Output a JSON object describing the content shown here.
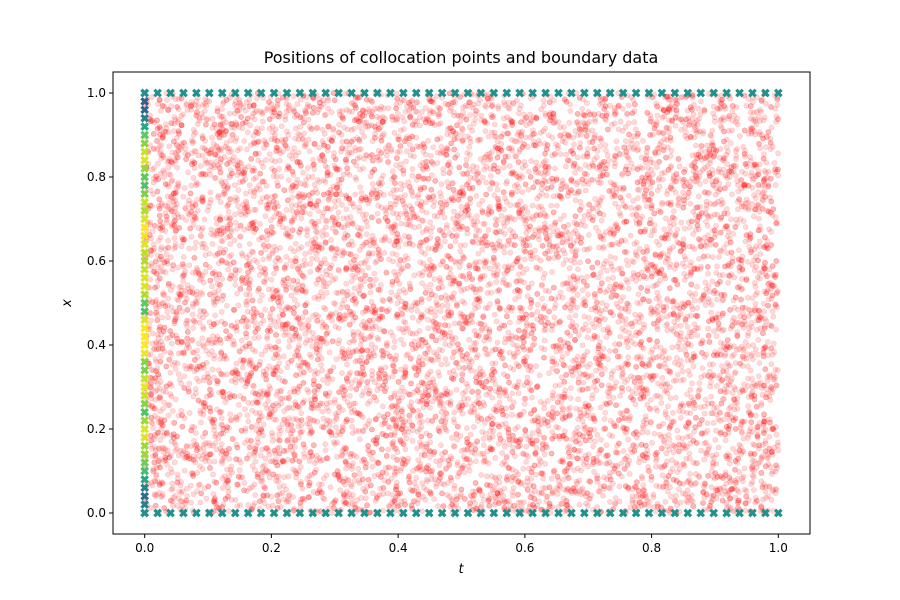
{
  "chart_data": {
    "type": "scatter",
    "title": "Positions of collocation points and boundary data",
    "xlabel": "t",
    "ylabel": "x",
    "xlim": [
      -0.05,
      1.05
    ],
    "ylim": [
      -0.05,
      1.05
    ],
    "xticks": [
      "0.0",
      "0.2",
      "0.4",
      "0.6",
      "0.8",
      "1.0"
    ],
    "yticks": [
      "0.0",
      "0.2",
      "0.4",
      "0.6",
      "0.8",
      "1.0"
    ],
    "grid": false,
    "legend": "none",
    "series": [
      {
        "kind": "collocation",
        "marker": "dot",
        "color": "#ff0000",
        "alpha": 0.15,
        "count": 10000,
        "distribution": "uniform",
        "t_range": [
          0.0,
          1.0
        ],
        "x_range": [
          0.0,
          1.0
        ]
      },
      {
        "kind": "boundary",
        "marker": "x",
        "color": "#21918c",
        "t": [
          0.0,
          0.0204,
          0.0408,
          0.0612,
          0.0816,
          0.102,
          0.1224,
          0.1429,
          0.1633,
          0.1837,
          0.2041,
          0.2245,
          0.2449,
          0.2653,
          0.2857,
          0.3061,
          0.3265,
          0.3469,
          0.3673,
          0.3878,
          0.4082,
          0.4286,
          0.449,
          0.4694,
          0.4898,
          0.5102,
          0.5306,
          0.551,
          0.5714,
          0.5918,
          0.6122,
          0.6327,
          0.6531,
          0.6735,
          0.6939,
          0.7143,
          0.7347,
          0.7551,
          0.7755,
          0.7959,
          0.8163,
          0.8367,
          0.8571,
          0.8776,
          0.898,
          0.9184,
          0.9388,
          0.9592,
          0.9796,
          1.0
        ],
        "x": [
          0.0,
          1.0
        ]
      },
      {
        "kind": "initial",
        "marker": "x",
        "t": 0.0,
        "colormap": "viridis",
        "x": [
          0.0,
          0.02,
          0.04,
          0.06,
          0.08,
          0.1,
          0.12,
          0.14,
          0.16,
          0.18,
          0.2,
          0.22,
          0.24,
          0.26,
          0.28,
          0.3,
          0.32,
          0.34,
          0.36,
          0.38,
          0.4,
          0.42,
          0.44,
          0.46,
          0.48,
          0.5,
          0.52,
          0.54,
          0.56,
          0.58,
          0.6,
          0.62,
          0.64,
          0.66,
          0.68,
          0.7,
          0.72,
          0.74,
          0.76,
          0.78,
          0.8,
          0.82,
          0.84,
          0.86,
          0.88,
          0.9,
          0.92,
          0.94,
          0.96,
          0.98,
          1.0
        ],
        "value": [
          0.5,
          0.45,
          0.35,
          0.45,
          0.6,
          0.7,
          0.78,
          0.85,
          0.85,
          0.95,
          0.95,
          0.85,
          0.72,
          0.82,
          0.92,
          0.97,
          0.92,
          0.8,
          0.82,
          0.97,
          1.0,
          1.0,
          1.0,
          0.95,
          0.72,
          0.75,
          0.88,
          0.95,
          0.95,
          0.92,
          0.88,
          0.9,
          0.95,
          0.98,
          1.0,
          0.95,
          0.88,
          0.92,
          0.8,
          0.72,
          0.75,
          0.85,
          0.95,
          0.92,
          0.82,
          0.75,
          0.6,
          0.45,
          0.32,
          0.3,
          0.5
        ]
      }
    ]
  }
}
